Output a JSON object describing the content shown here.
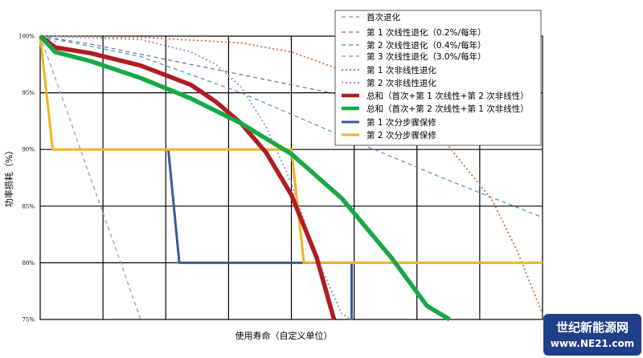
{
  "chart_data": {
    "type": "line",
    "xlabel": "使用寿命（自定义单位）",
    "ylabel": "功率损耗（%）",
    "ylim": [
      75,
      100
    ],
    "xlim": [
      0,
      10
    ],
    "grid": true,
    "legend_position": "top-right",
    "yticks": [
      "100%",
      "95%",
      "90%",
      "85%",
      "80%",
      "75%"
    ],
    "series": [
      {
        "name": "首次退化",
        "color": "#7a8fb0",
        "dash": "5,4",
        "width": 1.2,
        "x": [
          0,
          0.32
        ],
        "y": [
          100,
          99.5
        ]
      },
      {
        "name": "第 1 次线性退化（0.2%/每年）",
        "color": "#6b6f9a",
        "dash": "5,4",
        "width": 1.2,
        "x": [
          0,
          1,
          2,
          3,
          4,
          5,
          6
        ],
        "y": [
          100,
          99.3,
          98.4,
          97.5,
          96.6,
          95.7,
          94.8
        ]
      },
      {
        "name": "第 2 次线性退化（0.4%/每年）",
        "color": "#4a90c0",
        "dash": "5,4",
        "width": 1.2,
        "x": [
          0,
          2,
          4,
          6,
          8,
          10
        ],
        "y": [
          100,
          98.2,
          95.0,
          91.2,
          87.5,
          84.0
        ]
      },
      {
        "name": "第 3 次线性退化（3.0%/每年）",
        "color": "#a0a0c8",
        "dash": "5,4",
        "width": 1.4,
        "x": [
          0,
          0.5,
          1,
          1.5,
          2.0
        ],
        "y": [
          100,
          93.8,
          87.5,
          81.3,
          75
        ]
      },
      {
        "name": "第 1 次非线性退化",
        "color": "#d87a40",
        "dash": "2,3",
        "width": 2,
        "x": [
          0,
          2,
          4,
          5,
          6,
          7,
          8,
          9,
          9.5,
          10
        ],
        "y": [
          100,
          99.9,
          99.4,
          98.6,
          97.0,
          94.5,
          91.0,
          85.5,
          81.0,
          75.5
        ]
      },
      {
        "name": "第 2 次非线性退化",
        "color": "#8ea0d8",
        "dash": "2,3",
        "width": 2,
        "x": [
          0,
          2,
          3,
          3.5,
          4,
          4.5,
          5,
          5.5,
          6,
          6.2
        ],
        "y": [
          100,
          99.7,
          98.6,
          97.5,
          95.5,
          92.0,
          87.0,
          80.5,
          75.5,
          75
        ]
      },
      {
        "name": "总和（首次+第 1 次线性+第 2 次非线性）",
        "color": "#b01c24",
        "dash": "",
        "width": 5.5,
        "x": [
          0,
          0.3,
          1,
          2,
          3,
          3.5,
          4,
          4.5,
          5,
          5.5,
          5.85
        ],
        "y": [
          100,
          99.0,
          98.5,
          97.4,
          95.7,
          94.2,
          92.3,
          89.7,
          86.0,
          80.5,
          75
        ]
      },
      {
        "name": "总和（首次+第 2 次线性+第 1 次非线性）",
        "color": "#18a844",
        "dash": "",
        "width": 5.5,
        "x": [
          0,
          0.3,
          1,
          2,
          3,
          4,
          5,
          6,
          7,
          7.7,
          8.15
        ],
        "y": [
          100,
          98.6,
          97.8,
          96.3,
          94.5,
          92.3,
          89.6,
          85.7,
          80.4,
          76.2,
          75
        ]
      },
      {
        "name": "第 1 次分步骤保修",
        "color": "#3a5a98",
        "dash": "",
        "width": 3,
        "x": [
          2.55,
          2.55,
          2.77,
          6.2,
          6.2
        ],
        "y": [
          90,
          90,
          80,
          80,
          75
        ]
      },
      {
        "name": "第 2 次分步骤保修",
        "color": "#f4b21f",
        "dash": "",
        "width": 3,
        "x": [
          0,
          0.25,
          5.0,
          5.25,
          10
        ],
        "y": [
          100,
          90,
          90,
          80,
          80
        ]
      }
    ]
  },
  "watermark": {
    "line1": "世纪新能源网",
    "line2": "www.NE21.com"
  }
}
